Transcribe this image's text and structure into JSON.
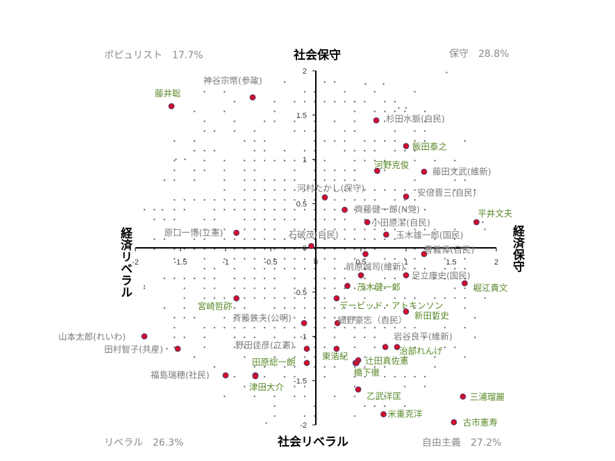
{
  "chart_data": {
    "type": "scatter",
    "title": "",
    "xlim": [
      -2,
      2
    ],
    "ylim": [
      -2,
      2
    ],
    "x_ticks": [
      "-2",
      "-1.5",
      "-1",
      "-0.5",
      "0",
      "0.5",
      "1",
      "1.5",
      "2"
    ],
    "y_ticks": [
      "2",
      "1.5",
      "1",
      "0.5",
      "0",
      "-0.5",
      "-1",
      "-1.5",
      "-2"
    ],
    "axis_titles": {
      "top": "社会保守",
      "bottom": "社会リベラル",
      "left": "経済リベラル",
      "right": "経済保守"
    },
    "quadrant_labels": {
      "top_left": "ポピュリスト　17.7%",
      "top_right": "保守　28.8%",
      "bottom_left": "リベラル　26.3%",
      "bottom_right": "自由主義　27.2%"
    },
    "colors": {
      "point_fill": "#d0102a",
      "point_stroke": "#3a3a7a",
      "background_dot": "#6e6e6e",
      "label_gray": "#7a7a7a",
      "label_green": "#5a8a2a"
    },
    "points": [
      {
        "label": "杉田水脈(自民)",
        "x": 0.67,
        "y": 1.44,
        "color": "gray"
      },
      {
        "label": "飯田泰之",
        "x": 1.0,
        "y": 1.15,
        "color": "green"
      },
      {
        "label": "河野克俊",
        "x": 0.68,
        "y": 0.87,
        "color": "green"
      },
      {
        "label": "藤田文武(維新)",
        "x": 1.2,
        "y": 0.86,
        "color": "gray"
      },
      {
        "label": "安倍晋三(自民)",
        "x": 1.0,
        "y": 0.58,
        "color": "gray"
      },
      {
        "label": "河村たかし(保守)",
        "x": 0.1,
        "y": 0.57,
        "color": "gray"
      },
      {
        "label": "齊藤健一郎(N党)",
        "x": 0.32,
        "y": 0.43,
        "color": "gray"
      },
      {
        "label": "平井文夫",
        "x": 1.78,
        "y": 0.29,
        "color": "green"
      },
      {
        "label": "小田原潔(自民)",
        "x": 0.57,
        "y": 0.29,
        "color": "gray"
      },
      {
        "label": "玉木雄一郎(国民)",
        "x": 0.78,
        "y": 0.15,
        "color": "gray"
      },
      {
        "label": "石破茂(自民)",
        "x": -0.05,
        "y": 0.02,
        "color": "gray"
      },
      {
        "label": "原口一博(立憲)",
        "x": -0.88,
        "y": 0.17,
        "color": "gray"
      },
      {
        "label": "神谷宗幣(参政)",
        "x": -0.7,
        "y": 1.7,
        "color": "gray"
      },
      {
        "label": "藤井聡",
        "x": -1.6,
        "y": 1.6,
        "color": "green"
      },
      {
        "label": "曹義偉(自民)",
        "x": 1.2,
        "y": -0.07,
        "color": "gray"
      },
      {
        "label": "",
        "x": 0.55,
        "y": -0.07,
        "color": "gray"
      },
      {
        "label": "前原誠司(維新)",
        "x": 0.5,
        "y": -0.31,
        "color": "gray"
      },
      {
        "label": "足立康史(国民)",
        "x": 1.0,
        "y": -0.31,
        "color": "gray"
      },
      {
        "label": "堀江貴文",
        "x": 1.65,
        "y": -0.4,
        "color": "green"
      },
      {
        "label": "茂木健一郎",
        "x": 0.35,
        "y": -0.43,
        "color": "green"
      },
      {
        "label": "デービッド・アトキンソン",
        "x": 0.23,
        "y": -0.57,
        "color": "green"
      },
      {
        "label": "宮崎哲弥",
        "x": -0.88,
        "y": -0.57,
        "color": "green"
      },
      {
        "label": "新田哲史",
        "x": 1.0,
        "y": -0.72,
        "color": "green"
      },
      {
        "label": "斉藤鉄夫(公明)",
        "x": -0.13,
        "y": -0.85,
        "color": "gray"
      },
      {
        "label": "細野豪志（自民）",
        "x": 0.24,
        "y": -0.85,
        "color": "gray"
      },
      {
        "label": "山本太郎(れいわ)",
        "x": -1.9,
        "y": -1.0,
        "color": "gray"
      },
      {
        "label": "岩谷良平(維新)",
        "x": 0.9,
        "y": -1.12,
        "color": "gray"
      },
      {
        "label": "治部れんげ",
        "x": 0.77,
        "y": -1.12,
        "color": "green"
      },
      {
        "label": "田村智子(共産)",
        "x": -1.53,
        "y": -1.14,
        "color": "gray"
      },
      {
        "label": "野田佳彦(立憲)",
        "x": -0.1,
        "y": -1.14,
        "color": "gray"
      },
      {
        "label": "東浩紀",
        "x": 0.23,
        "y": -1.14,
        "color": "green"
      },
      {
        "label": "辻田真佐憲",
        "x": 0.47,
        "y": -1.27,
        "color": "green"
      },
      {
        "label": "田原総一朗",
        "x": -0.1,
        "y": -1.3,
        "color": "green"
      },
      {
        "label": "",
        "x": 0.44,
        "y": -1.3,
        "color": "gray"
      },
      {
        "label": "橋下徹",
        "x": 0.45,
        "y": -1.3,
        "color": "green"
      },
      {
        "label": "福島瑞穂(社民)",
        "x": -1.0,
        "y": -1.44,
        "color": "gray"
      },
      {
        "label": "",
        "x": -0.67,
        "y": -1.44,
        "color": "gray"
      },
      {
        "label": "津田大介",
        "x": -0.67,
        "y": -1.45,
        "color": "green"
      },
      {
        "label": "乙武洋匡",
        "x": 0.47,
        "y": -1.6,
        "color": "green"
      },
      {
        "label": "三浦瑠麗",
        "x": 1.63,
        "y": -1.68,
        "color": "green"
      },
      {
        "label": "米重克洋",
        "x": 0.75,
        "y": -1.88,
        "color": "green"
      },
      {
        "label": "古市憲寿",
        "x": 1.53,
        "y": -1.97,
        "color": "green"
      }
    ]
  }
}
